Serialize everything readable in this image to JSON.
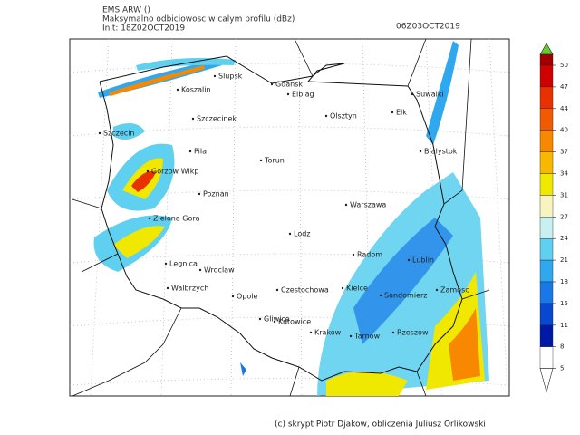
{
  "header": {
    "model": "EMS ARW ()",
    "field": "Maksymalno odbiciowosc w calym profilu (dBz)",
    "init": "Init: 18Z02OCT2019",
    "valid": "06Z03OCT2019"
  },
  "map": {
    "cities": [
      "Slupsk",
      "Gdansk",
      "Koszalin",
      "Elblag",
      "Suwalki",
      "Elk",
      "Olsztyn",
      "Szczecinek",
      "Szczecin",
      "Pila",
      "Torun",
      "Bialystok",
      "Gorzow Wlkp",
      "Poznan",
      "Warszawa",
      "Zielona Gora",
      "Lodz",
      "Radom",
      "Lublin",
      "Legnica",
      "Wroclaw",
      "Walbrzych",
      "Opole",
      "Czestochowa",
      "Kielce",
      "Sandomierz",
      "Zamosc",
      "Gliwice",
      "Katowice",
      "Krakow",
      "Tarnow",
      "Rzeszow"
    ]
  },
  "colorbar": {
    "ticks": [
      50,
      47,
      44,
      40,
      37,
      34,
      31,
      27,
      24,
      21,
      18,
      15,
      11,
      8,
      5
    ],
    "colors": [
      "#66cc33",
      "#a00000",
      "#d00000",
      "#e83000",
      "#f05a00",
      "#f88800",
      "#f8b800",
      "#f0e800",
      "#f8f4c0",
      "#c8f0f0",
      "#60d0f0",
      "#30a8f0",
      "#1878e8",
      "#0848d0",
      "#0018a8",
      "#ffffff"
    ]
  },
  "footer": "(c) skrypt Piotr Djakow, obliczenia Juliusz Orlikowski"
}
